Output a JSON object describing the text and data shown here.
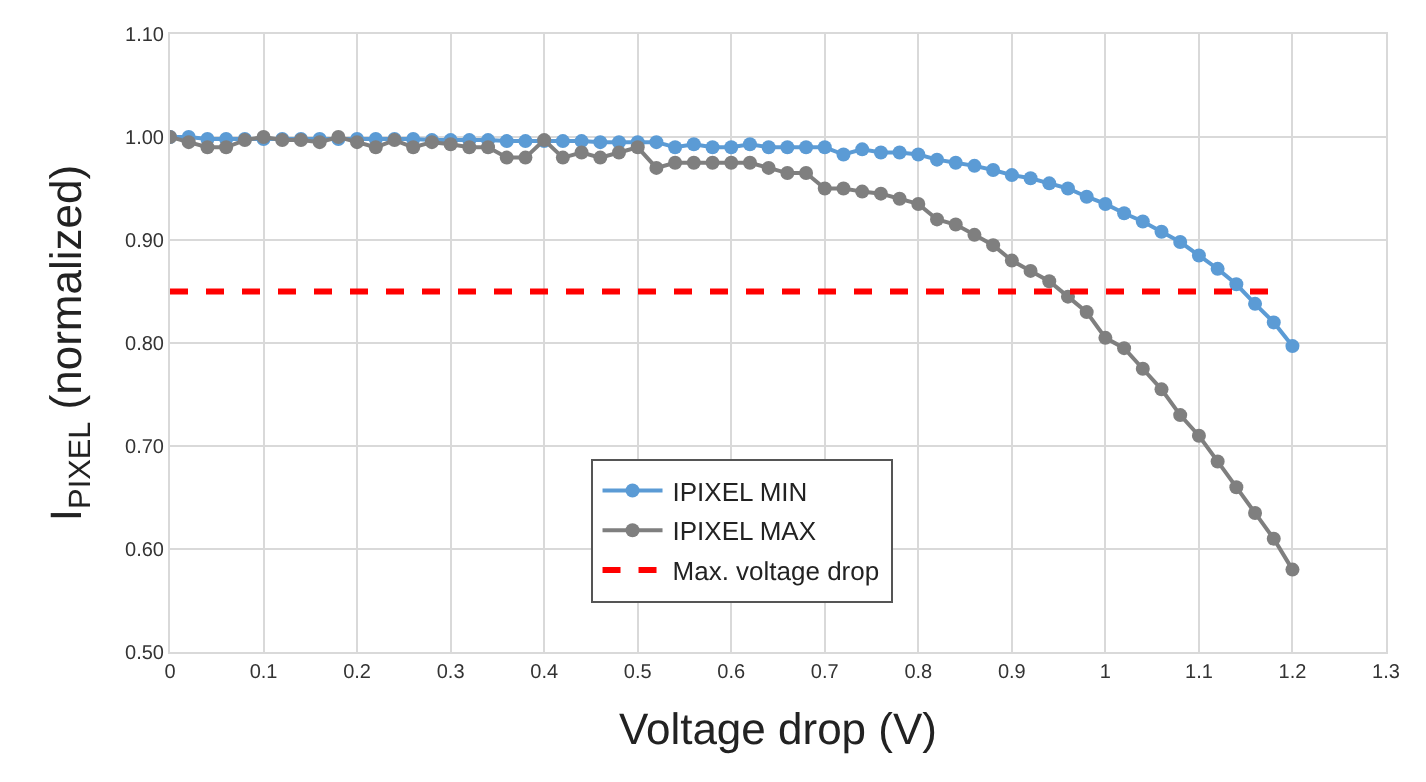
{
  "chart_data": {
    "type": "line",
    "xlabel": "Voltage drop (V)",
    "ylabel": "I$_{PIXEL}$ (normalized)",
    "x": [
      0,
      0.02,
      0.04,
      0.06,
      0.08,
      0.1,
      0.12,
      0.14,
      0.16,
      0.18,
      0.2,
      0.22,
      0.24,
      0.26,
      0.28,
      0.3,
      0.32,
      0.34,
      0.36,
      0.38,
      0.4,
      0.42,
      0.44,
      0.46,
      0.48,
      0.5,
      0.52,
      0.54,
      0.56,
      0.58,
      0.6,
      0.62,
      0.64,
      0.66,
      0.68,
      0.7,
      0.72,
      0.74,
      0.76,
      0.78,
      0.8,
      0.82,
      0.84,
      0.86,
      0.88,
      0.9,
      0.92,
      0.94,
      0.96,
      0.98,
      1.0,
      1.02,
      1.04,
      1.06,
      1.08,
      1.1,
      1.12,
      1.14,
      1.16,
      1.18,
      1.2
    ],
    "series": [
      {
        "name": "IPIXEL MIN",
        "color": "#5b9bd5",
        "marker": "circle",
        "values": [
          1.0,
          1.0,
          0.998,
          0.998,
          0.998,
          0.998,
          0.998,
          0.998,
          0.998,
          0.998,
          0.998,
          0.998,
          0.998,
          0.998,
          0.997,
          0.997,
          0.997,
          0.997,
          0.996,
          0.996,
          0.996,
          0.996,
          0.996,
          0.995,
          0.995,
          0.995,
          0.995,
          0.99,
          0.993,
          0.99,
          0.99,
          0.993,
          0.99,
          0.99,
          0.99,
          0.99,
          0.983,
          0.988,
          0.985,
          0.985,
          0.983,
          0.978,
          0.975,
          0.972,
          0.968,
          0.963,
          0.96,
          0.955,
          0.95,
          0.942,
          0.935,
          0.926,
          0.918,
          0.908,
          0.898,
          0.885,
          0.872,
          0.857,
          0.838,
          0.82,
          0.797
        ]
      },
      {
        "name": "IPIXEL MAX",
        "color": "#7f7f7f",
        "marker": "circle",
        "values": [
          1.0,
          0.995,
          0.99,
          0.99,
          0.997,
          1.0,
          0.997,
          0.997,
          0.995,
          1.0,
          0.995,
          0.99,
          0.997,
          0.99,
          0.995,
          0.993,
          0.99,
          0.99,
          0.98,
          0.98,
          0.997,
          0.98,
          0.985,
          0.98,
          0.985,
          0.99,
          0.97,
          0.975,
          0.975,
          0.975,
          0.975,
          0.975,
          0.97,
          0.965,
          0.965,
          0.95,
          0.95,
          0.947,
          0.945,
          0.94,
          0.935,
          0.92,
          0.915,
          0.905,
          0.895,
          0.88,
          0.87,
          0.86,
          0.845,
          0.83,
          0.805,
          0.795,
          0.775,
          0.755,
          0.73,
          0.71,
          0.685,
          0.66,
          0.635,
          0.61,
          0.58
        ]
      },
      {
        "name": "Max. voltage drop",
        "color": "#ff0000",
        "marker": "none",
        "line_style": "dashed",
        "x": [
          0,
          1.18
        ],
        "values": [
          0.85,
          0.85
        ]
      }
    ],
    "xlim": [
      0,
      1.3
    ],
    "xticks": [
      0,
      0.1,
      0.2,
      0.3,
      0.4,
      0.5,
      0.6,
      0.7,
      0.8,
      0.9,
      1,
      1.1,
      1.2,
      1.3
    ],
    "ylim": [
      0.5,
      1.1
    ],
    "yticks": [
      {
        "value": 0.5,
        "label": "0.50"
      },
      {
        "value": 0.6,
        "label": "0.60"
      },
      {
        "value": 0.7,
        "label": "0.70"
      },
      {
        "value": 0.8,
        "label": "0.80"
      },
      {
        "value": 0.9,
        "label": "0.90"
      },
      {
        "value": 1.0,
        "label": "1.00"
      },
      {
        "value": 1.1,
        "label": "1.10"
      }
    ],
    "grid": true,
    "legend": "bottom"
  }
}
